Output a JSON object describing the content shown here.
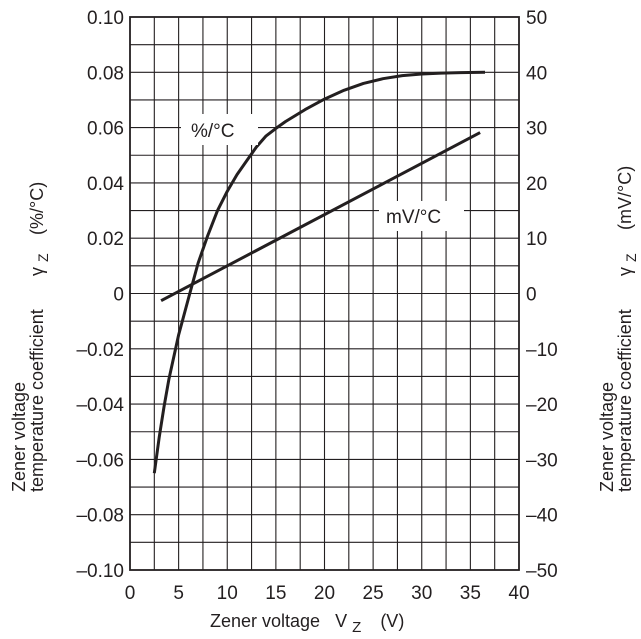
{
  "chart_data": {
    "type": "line",
    "xlabel": {
      "main": "Zener voltage",
      "symbol": "V",
      "subscript": "Z",
      "unit": "(V)"
    },
    "ylabel_left": {
      "line1": "Zener voltage",
      "line2": "temperature coefficient",
      "symbol": "γ",
      "subscript": "Z",
      "unit": "(%/°C)"
    },
    "ylabel_right": {
      "line1": "Zener voltage",
      "line2": "temperature coefficient",
      "symbol": "γ",
      "subscript": "Z",
      "unit": "(mV/°C)"
    },
    "xlim": [
      0,
      40
    ],
    "ylim_left": [
      -0.1,
      0.1
    ],
    "ylim_right": [
      -50,
      50
    ],
    "x_ticks": [
      "0",
      "5",
      "10",
      "15",
      "20",
      "25",
      "30",
      "35",
      "40"
    ],
    "y_left_ticks": [
      "0.10",
      "0.08",
      "0.06",
      "0.04",
      "0.02",
      "0",
      "–0.02",
      "–0.04",
      "–0.06",
      "–0.08",
      "–0.10"
    ],
    "y_right_ticks": [
      "50",
      "40",
      "30",
      "20",
      "10",
      "0",
      "–10",
      "–20",
      "–30",
      "–40",
      "–50"
    ],
    "grid": true,
    "series": [
      {
        "name": "%/°C",
        "axis": "left",
        "color": "#231f20",
        "x": [
          2.5,
          3,
          3.5,
          4,
          5,
          6,
          7,
          8,
          9,
          10,
          11,
          12,
          13,
          14,
          15,
          16,
          18,
          20,
          22,
          24,
          26,
          28,
          30,
          32,
          34,
          36.5
        ],
        "y": [
          -0.065,
          -0.052,
          -0.041,
          -0.031,
          -0.015,
          -0.002,
          0.011,
          0.021,
          0.03,
          0.037,
          0.043,
          0.048,
          0.053,
          0.057,
          0.0597,
          0.0622,
          0.0665,
          0.0703,
          0.0735,
          0.076,
          0.0777,
          0.0788,
          0.0794,
          0.0797,
          0.0799,
          0.08
        ]
      },
      {
        "name": "mV/°C",
        "axis": "right",
        "color": "#231f20",
        "x": [
          3.2,
          36
        ],
        "y": [
          -1.3,
          29.1
        ]
      }
    ]
  }
}
